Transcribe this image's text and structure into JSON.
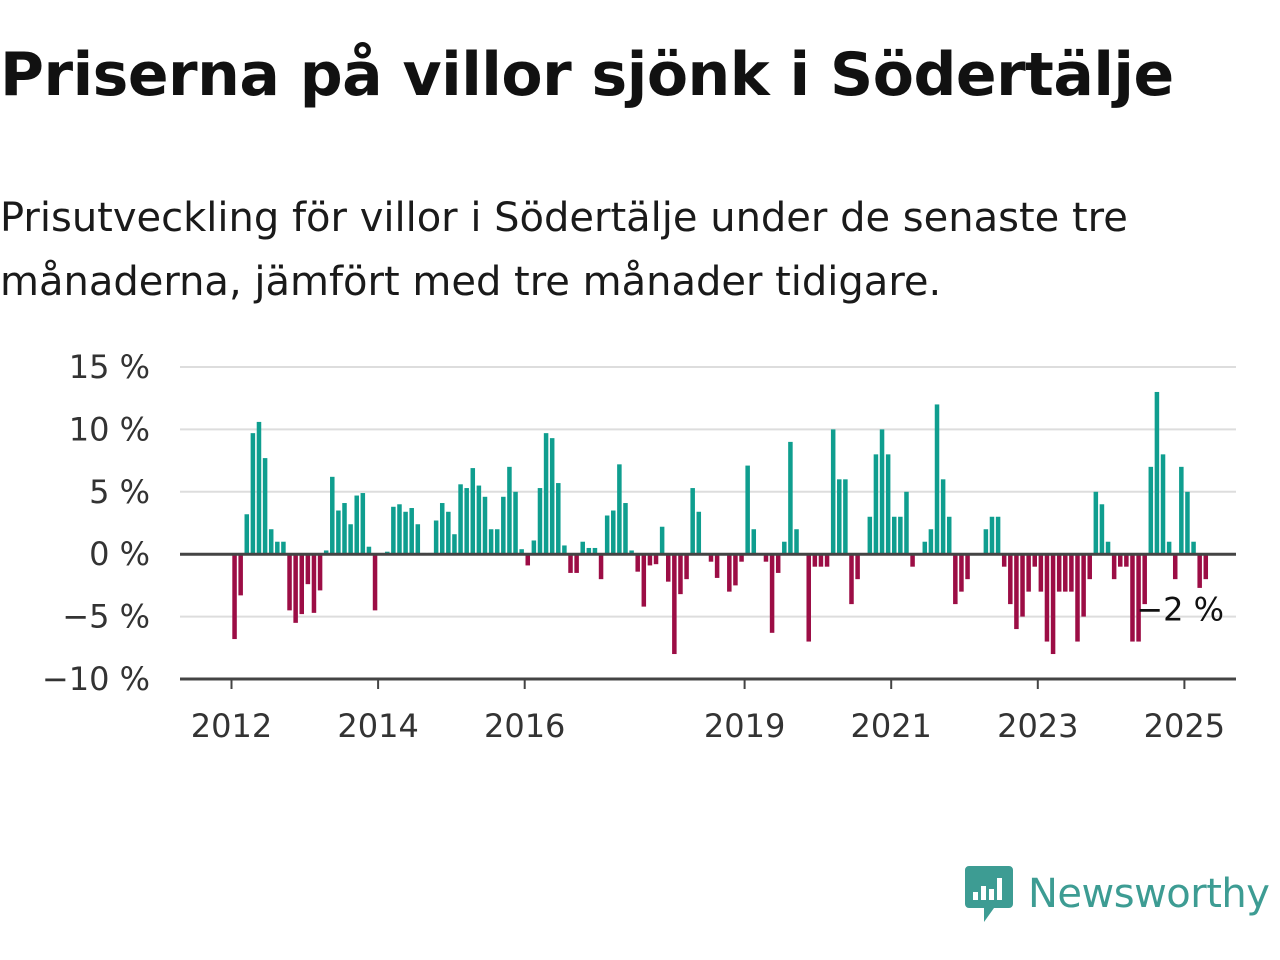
{
  "title": "Priserna på villor sjönk i Södertälje",
  "subtitle": "Prisutveckling för villor i Södertälje under de senaste tre månaderna, jämfört med tre månader tidigare.",
  "brand": {
    "name": "Newsworthy",
    "color": "#3d9c93"
  },
  "colors": {
    "positive": "#0f9e8f",
    "negative": "#9c0d45",
    "grid": "#dddddd",
    "axis": "#444444"
  },
  "chart_data": {
    "type": "bar",
    "title": "Priserna på villor sjönk i Södertälje",
    "xlabel": "",
    "ylabel": "",
    "ylim": [
      -10,
      15
    ],
    "y_ticks": [
      {
        "value": 15,
        "label": "15 %"
      },
      {
        "value": 10,
        "label": "10 %"
      },
      {
        "value": 5,
        "label": "5 %"
      },
      {
        "value": 0,
        "label": "0 %"
      },
      {
        "value": -5,
        "label": "−5 %"
      },
      {
        "value": -10,
        "label": "−10 %"
      }
    ],
    "x_ticks": [
      {
        "value": 2012,
        "label": "2012"
      },
      {
        "value": 2014,
        "label": "2014"
      },
      {
        "value": 2016,
        "label": "2016"
      },
      {
        "value": 2019,
        "label": "2019"
      },
      {
        "value": 2021,
        "label": "2021"
      },
      {
        "value": 2023,
        "label": "2023"
      },
      {
        "value": 2025,
        "label": "2025"
      }
    ],
    "grid": true,
    "legend": "none",
    "series": [
      {
        "x_start": "2012-01",
        "frequency": "monthly",
        "values": [
          -6.8,
          -3.3,
          3.2,
          9.7,
          10.6,
          7.7,
          2.0,
          1.0,
          1.0,
          -4.5,
          -5.5,
          -4.8,
          -2.4,
          -4.7,
          -2.9,
          0.3,
          6.2,
          3.5,
          4.1,
          2.4,
          4.7,
          4.9,
          0.6,
          -4.5,
          0.0,
          0.2,
          3.8,
          4.0,
          3.4,
          3.7,
          2.4,
          0.1,
          0.1,
          2.7,
          4.1,
          3.4,
          1.6,
          5.6,
          5.3,
          6.9,
          5.5,
          4.6,
          2.0,
          2.0,
          4.6,
          7.0,
          5.0,
          0.4,
          -0.9,
          1.1,
          5.3,
          9.7,
          9.3,
          5.7,
          0.7,
          -1.5,
          -1.5,
          1.0,
          0.5,
          0.5,
          -2.0,
          3.1,
          3.5,
          7.2,
          4.1,
          0.3,
          -1.4,
          -4.2,
          -0.9,
          -0.8,
          2.2,
          -2.2,
          -8.0,
          -3.2,
          -2.0,
          5.3,
          3.4,
          0.1,
          -0.6,
          -1.9,
          0.0,
          -3.0,
          -2.5,
          -0.6,
          7.1,
          2.0,
          0.0,
          -0.6,
          -6.3,
          -1.5,
          1.0,
          9.0,
          2.0,
          0.0,
          -7.0,
          -1.0,
          -1.0,
          -1.0,
          10.0,
          6.0,
          6.0,
          -4.0,
          -2.0,
          0.0,
          3.0,
          8.0,
          10.0,
          8.0,
          3.0,
          3.0,
          5.0,
          -1.0,
          0.0,
          1.0,
          2.0,
          12.0,
          6.0,
          3.0,
          -4.0,
          -3.0,
          -2.0,
          0.0,
          0.0,
          2.0,
          3.0,
          3.0,
          -1.0,
          -4.0,
          -6.0,
          -5.0,
          -3.0,
          -1.0,
          -3.0,
          -7.0,
          -8.0,
          -3.0,
          -3.0,
          -3.0,
          -7.0,
          -5.0,
          -2.0,
          5.0,
          4.0,
          1.0,
          -2.0,
          -1.0,
          -1.0,
          -7.0,
          -7.0,
          -4.0,
          7.0,
          13.0,
          8.0,
          1.0,
          -2.0,
          7.0,
          5.0,
          1.0,
          -2.7,
          -2.0
        ]
      }
    ],
    "annotations": [
      {
        "label": "−2 %",
        "target": "last"
      }
    ]
  }
}
